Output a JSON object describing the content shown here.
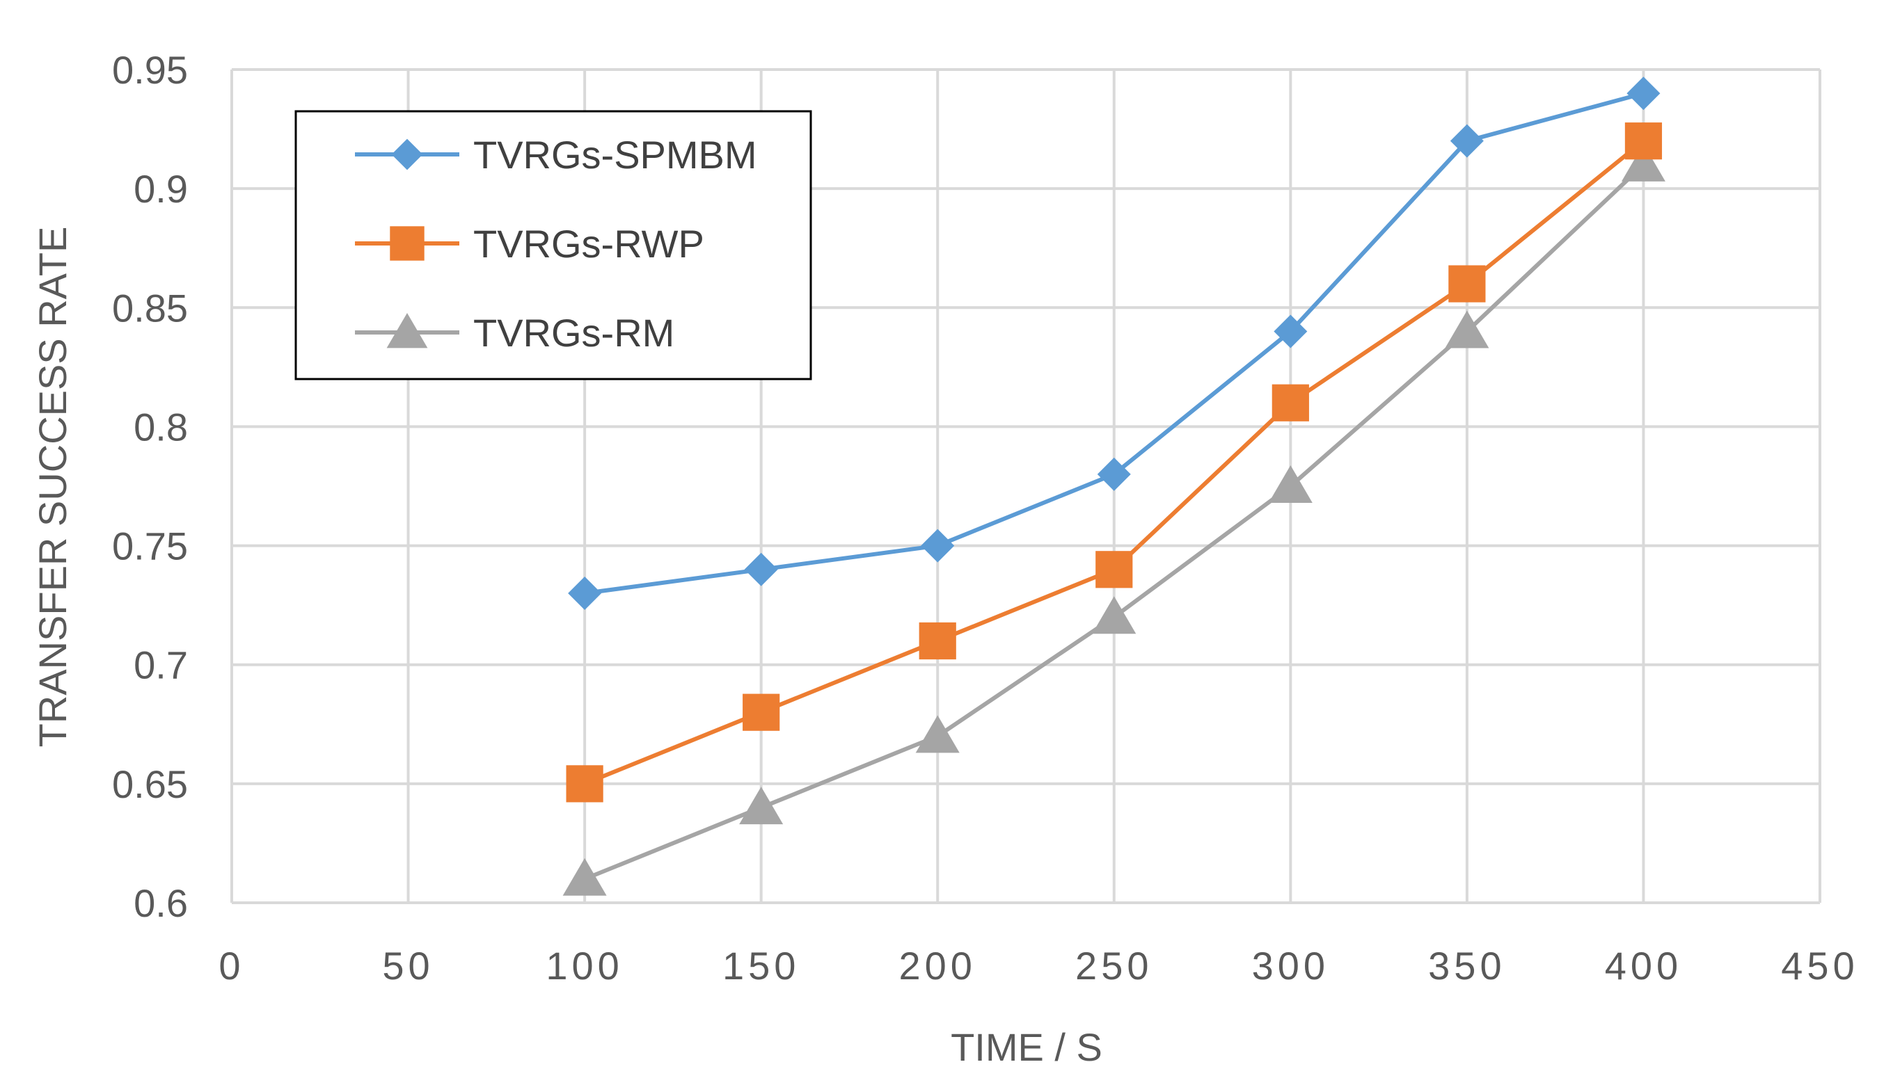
{
  "chart_data": {
    "type": "line",
    "title": "",
    "xlabel": "TIME / S",
    "ylabel": "TRANSFER SUCCESS RATE",
    "xlim": [
      0,
      450
    ],
    "ylim": [
      0.6,
      0.95
    ],
    "x_ticks": [
      0,
      50,
      100,
      150,
      200,
      250,
      300,
      350,
      400,
      450
    ],
    "x_tick_labels": [
      "0",
      "50",
      "100",
      "150",
      "200",
      "250",
      "300",
      "350",
      "400",
      "450"
    ],
    "y_ticks": [
      0.6,
      0.65,
      0.7,
      0.75,
      0.8,
      0.85,
      0.9,
      0.95
    ],
    "y_tick_labels": [
      "0.6",
      "0.65",
      "0.7",
      "0.75",
      "0.8",
      "0.85",
      "0.9",
      "0.95"
    ],
    "grid": true,
    "legend_position": "top-left",
    "x": [
      100,
      150,
      200,
      250,
      300,
      350,
      400
    ],
    "series": [
      {
        "name": "TVRGs-SPMBM",
        "color": "#5B9BD5",
        "marker": "diamond",
        "values": [
          0.73,
          0.74,
          0.75,
          0.78,
          0.84,
          0.92,
          0.94
        ]
      },
      {
        "name": "TVRGs-RWP",
        "color": "#ED7D31",
        "marker": "square",
        "values": [
          0.65,
          0.68,
          0.71,
          0.74,
          0.81,
          0.86,
          0.92
        ]
      },
      {
        "name": "TVRGs-RM",
        "color": "#A5A5A5",
        "marker": "triangle",
        "values": [
          0.61,
          0.64,
          0.67,
          0.72,
          0.775,
          0.84,
          0.91
        ]
      }
    ]
  }
}
